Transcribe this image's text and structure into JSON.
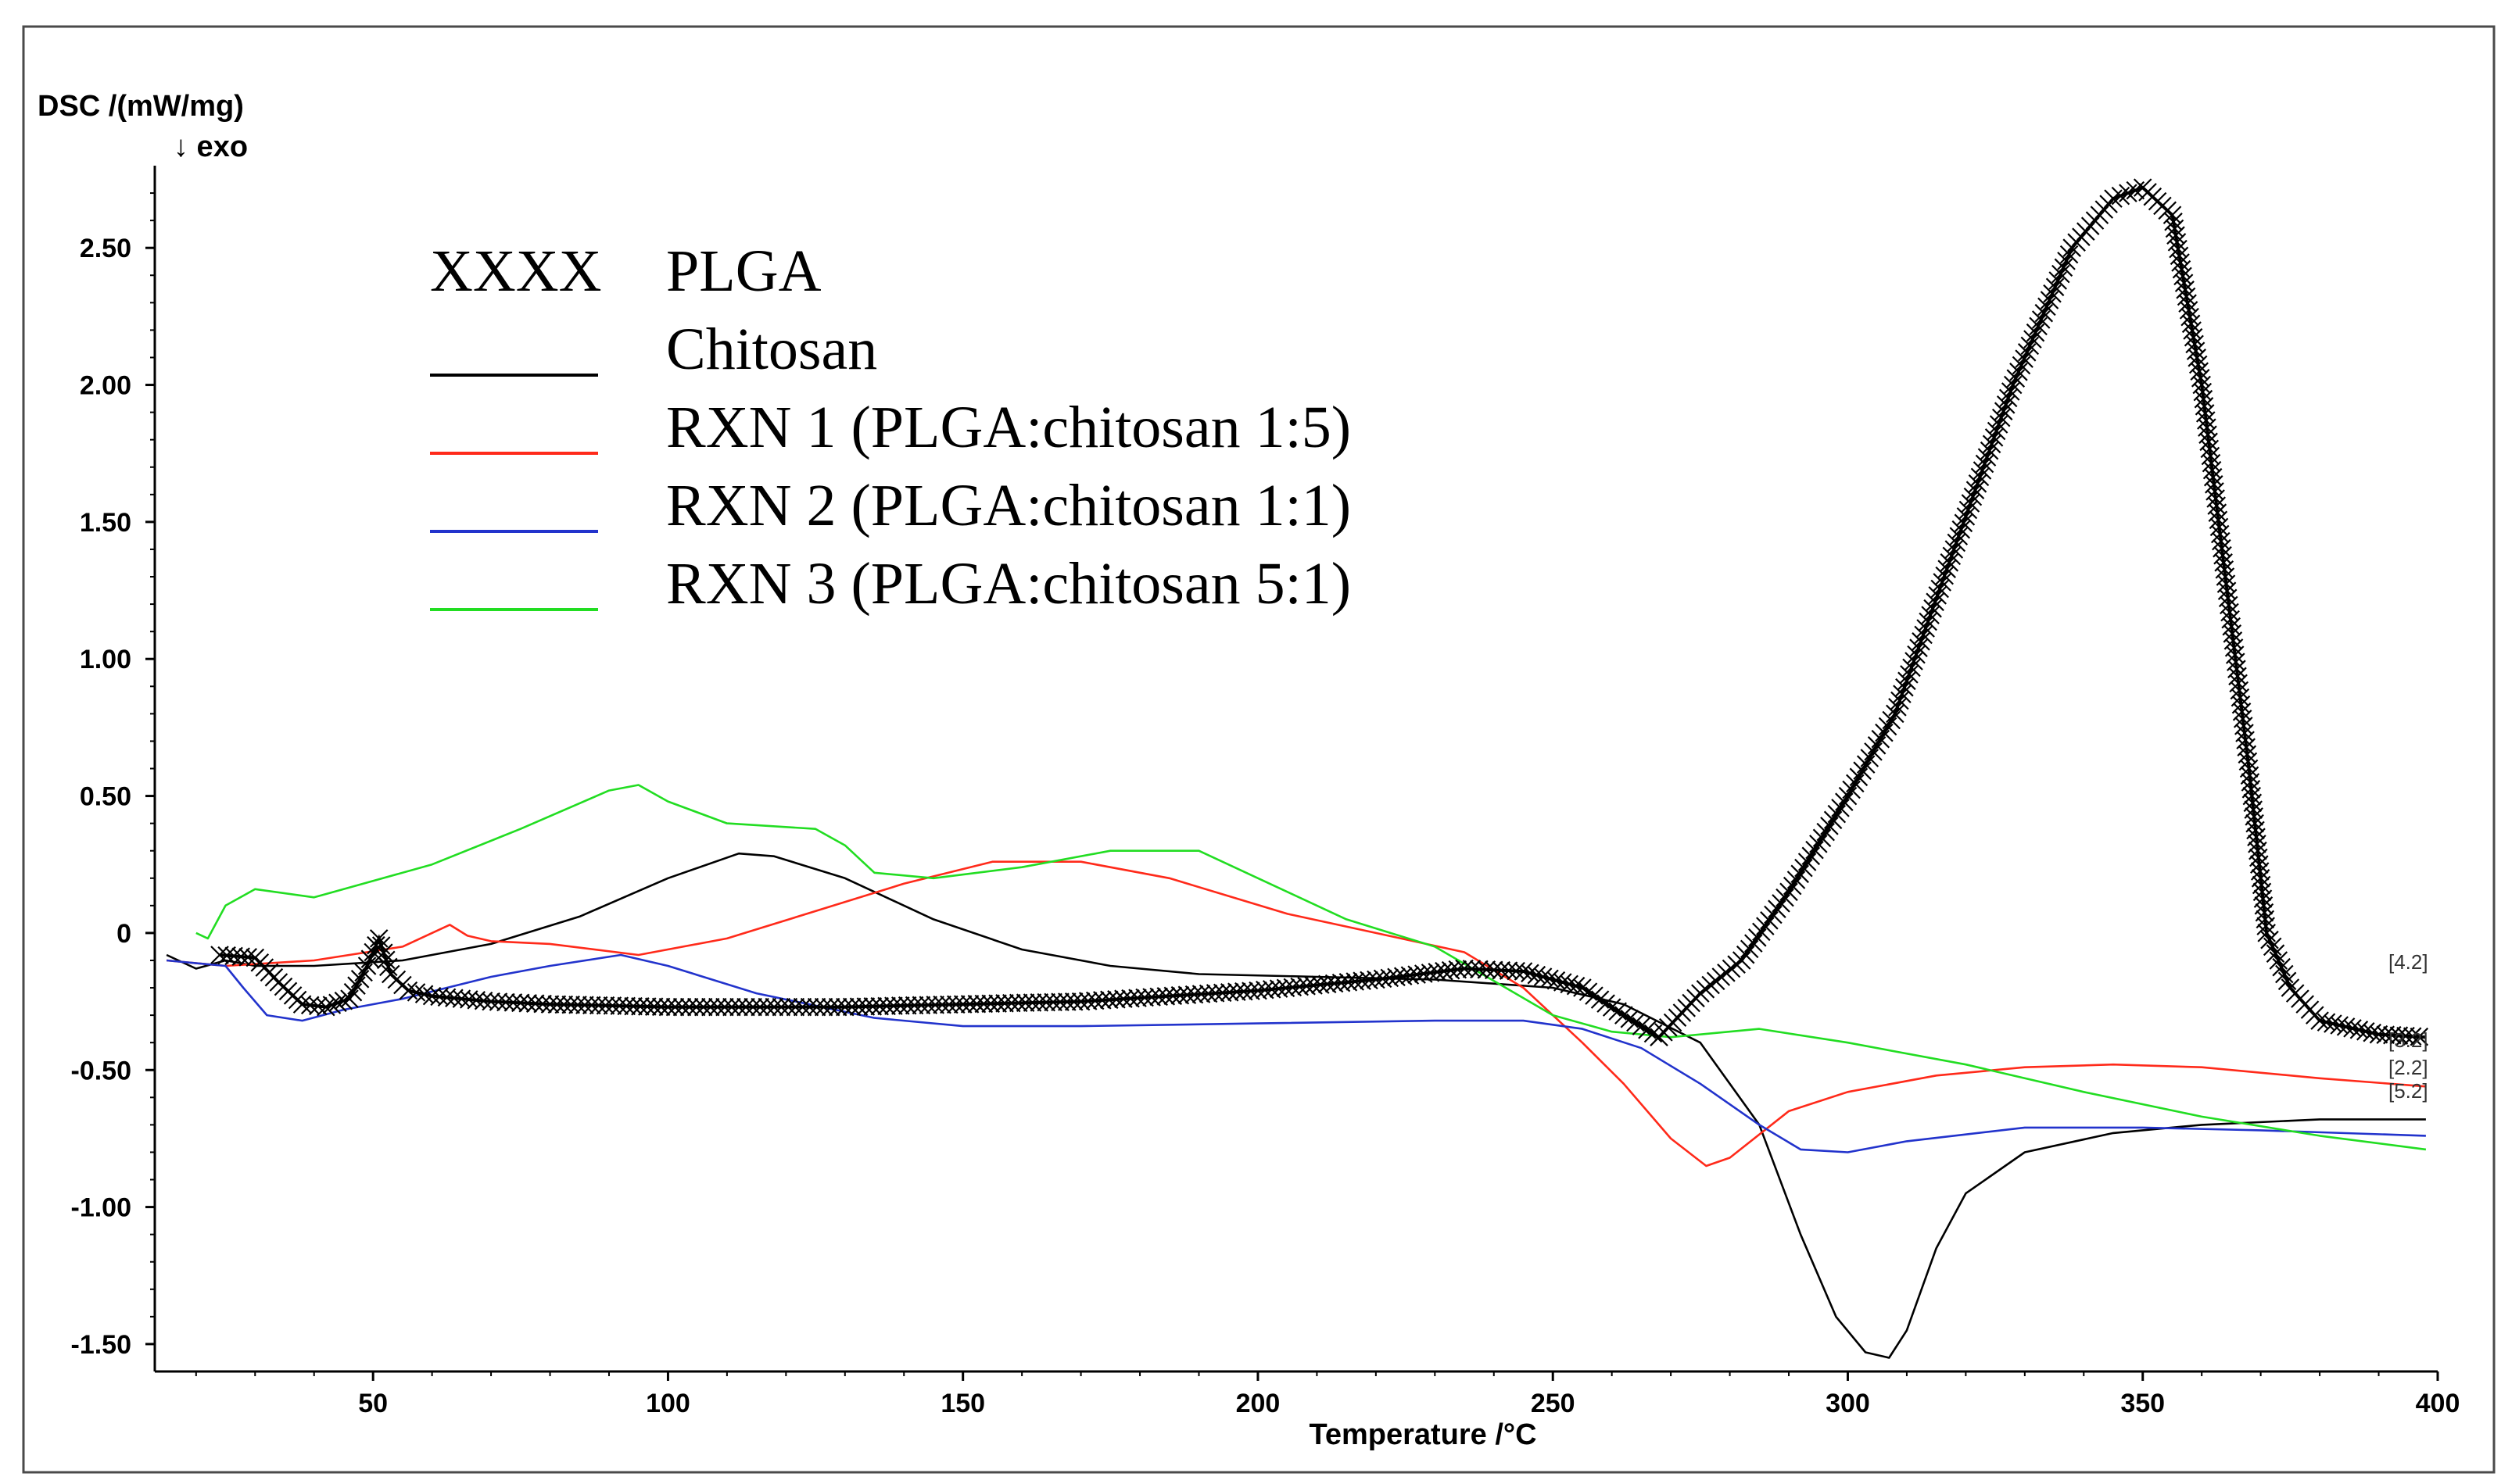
{
  "chart_data": {
    "type": "line",
    "ylabel": "DSC /(mW/mg)",
    "ylabel_note": "↓ exo",
    "xlabel": "Temperature /°C",
    "xlim": [
      13,
      400
    ],
    "ylim": [
      -1.6,
      2.8
    ],
    "x_ticks": [
      50,
      100,
      150,
      200,
      250,
      300,
      350,
      400
    ],
    "x_tick_labels": [
      "50",
      "100",
      "150",
      "200",
      "250",
      "300",
      "350",
      "400"
    ],
    "y_ticks": [
      2.5,
      2.0,
      1.5,
      1.0,
      0.5,
      0,
      -0.5,
      -1.0,
      -1.5
    ],
    "y_tick_labels": [
      "2.50",
      "2.00",
      "1.50",
      "1.00",
      "0.50",
      "0",
      "-0.50",
      "-1.00",
      "-1.50"
    ],
    "grid": false,
    "legend_position": "top-left",
    "legend_marker_text": "XXXX",
    "series": [
      {
        "name": "PLGA",
        "color": "#000000",
        "style": "cross-markers",
        "end_tag": "[4.2]",
        "x": [
          24,
          30,
          34,
          38,
          42,
          46,
          49,
          51,
          53,
          56,
          60,
          70,
          80,
          100,
          130,
          170,
          200,
          220,
          235,
          245,
          255,
          262,
          268,
          275,
          282,
          290,
          300,
          308,
          318,
          328,
          338,
          345,
          350,
          355,
          360,
          364,
          368,
          371,
          375,
          380,
          390,
          398
        ],
        "y": [
          -0.08,
          -0.09,
          -0.18,
          -0.26,
          -0.27,
          -0.24,
          -0.12,
          -0.02,
          -0.15,
          -0.21,
          -0.23,
          -0.25,
          -0.26,
          -0.27,
          -0.27,
          -0.25,
          -0.21,
          -0.17,
          -0.13,
          -0.14,
          -0.2,
          -0.3,
          -0.38,
          -0.22,
          -0.1,
          0.15,
          0.5,
          0.8,
          1.4,
          2.0,
          2.5,
          2.68,
          2.72,
          2.62,
          2.0,
          1.3,
          0.6,
          0.0,
          -0.2,
          -0.32,
          -0.37,
          -0.38
        ]
      },
      {
        "name": "Chitosan",
        "color": "#000000",
        "style": "line",
        "x": [
          15,
          20,
          25,
          30,
          40,
          55,
          70,
          85,
          100,
          112,
          118,
          130,
          145,
          160,
          175,
          190,
          210,
          230,
          250,
          262,
          275,
          285,
          292,
          298,
          303,
          307,
          310,
          315,
          320,
          330,
          345,
          360,
          380,
          398
        ],
        "y": [
          -0.08,
          -0.13,
          -0.1,
          -0.12,
          -0.12,
          -0.1,
          -0.04,
          0.06,
          0.2,
          0.29,
          0.28,
          0.2,
          0.05,
          -0.06,
          -0.12,
          -0.15,
          -0.16,
          -0.17,
          -0.2,
          -0.26,
          -0.4,
          -0.7,
          -1.1,
          -1.4,
          -1.53,
          -1.55,
          -1.45,
          -1.15,
          -0.95,
          -0.8,
          -0.73,
          -0.7,
          -0.68,
          -0.68
        ]
      },
      {
        "name": "RXN 1 (PLGA:chitosan 1:5)",
        "color": "#ff2a1a",
        "style": "line",
        "end_tag": "[3.2]",
        "x": [
          15,
          25,
          40,
          55,
          60,
          63,
          66,
          70,
          80,
          95,
          110,
          125,
          140,
          155,
          170,
          185,
          205,
          220,
          235,
          245,
          255,
          262,
          270,
          276,
          280,
          290,
          300,
          315,
          330,
          345,
          360,
          380,
          398
        ],
        "y": [
          -0.1,
          -0.12,
          -0.1,
          -0.05,
          0.0,
          0.03,
          -0.01,
          -0.03,
          -0.04,
          -0.08,
          -0.02,
          0.08,
          0.18,
          0.26,
          0.26,
          0.2,
          0.07,
          0.0,
          -0.07,
          -0.2,
          -0.4,
          -0.55,
          -0.75,
          -0.85,
          -0.82,
          -0.65,
          -0.58,
          -0.52,
          -0.49,
          -0.48,
          -0.49,
          -0.53,
          -0.56
        ]
      },
      {
        "name": "RXN 2 (PLGA:chitosan 1:1)",
        "color": "#2233cc",
        "style": "line",
        "end_tag": "[2.2]",
        "x": [
          15,
          25,
          28,
          32,
          38,
          45,
          55,
          70,
          80,
          92,
          100,
          115,
          135,
          150,
          170,
          200,
          230,
          245,
          255,
          265,
          275,
          285,
          292,
          300,
          310,
          330,
          350,
          370,
          398
        ],
        "y": [
          -0.1,
          -0.12,
          -0.2,
          -0.3,
          -0.32,
          -0.28,
          -0.24,
          -0.16,
          -0.12,
          -0.08,
          -0.12,
          -0.22,
          -0.31,
          -0.34,
          -0.34,
          -0.33,
          -0.32,
          -0.32,
          -0.35,
          -0.42,
          -0.55,
          -0.7,
          -0.79,
          -0.8,
          -0.76,
          -0.71,
          -0.71,
          -0.72,
          -0.74
        ]
      },
      {
        "name": "RXN 3 (PLGA:chitosan 5:1)",
        "color": "#22dd22",
        "style": "line",
        "end_tag": "[5.2]",
        "x": [
          20,
          22,
          25,
          30,
          40,
          50,
          60,
          75,
          90,
          95,
          100,
          110,
          125,
          130,
          135,
          145,
          160,
          175,
          190,
          200,
          215,
          230,
          242,
          250,
          260,
          270,
          285,
          300,
          320,
          340,
          360,
          380,
          398
        ],
        "y": [
          0.0,
          -0.02,
          0.1,
          0.16,
          0.13,
          0.19,
          0.25,
          0.38,
          0.52,
          0.54,
          0.48,
          0.4,
          0.38,
          0.32,
          0.22,
          0.2,
          0.24,
          0.3,
          0.3,
          0.2,
          0.05,
          -0.05,
          -0.2,
          -0.3,
          -0.36,
          -0.38,
          -0.35,
          -0.4,
          -0.48,
          -0.58,
          -0.67,
          -0.74,
          -0.79
        ]
      }
    ]
  }
}
